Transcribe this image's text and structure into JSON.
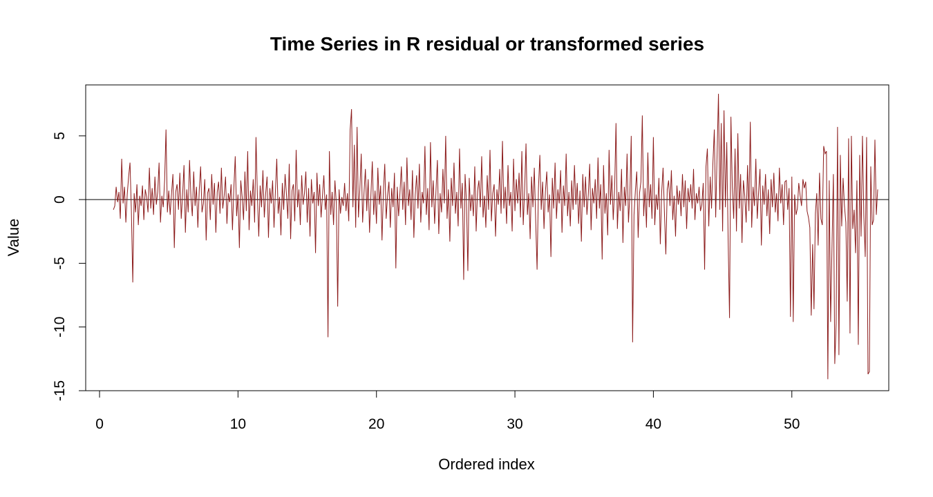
{
  "chart_data": {
    "type": "line",
    "title": "Time Series in R residual or transformed series",
    "xlabel": "Ordered index",
    "ylabel": "Value",
    "xlim": [
      -1,
      57
    ],
    "ylim": [
      -15,
      9
    ],
    "x_ticks": [
      0,
      10,
      20,
      30,
      40,
      50
    ],
    "y_ticks": [
      -15,
      -10,
      -5,
      0,
      5
    ],
    "x_tick_labels": [
      "0",
      "10",
      "20",
      "30",
      "40",
      "50"
    ],
    "y_tick_labels": [
      "-15",
      "-10",
      "-5",
      "0",
      "5"
    ],
    "reference_line": 0,
    "grid": false,
    "series": [
      {
        "color": "#8B1A1A",
        "x_start": 1,
        "x_step": 0.1,
        "values": [
          -0.8,
          -0.5,
          1.0,
          -0.2,
          0.6,
          -1.5,
          3.2,
          -0.3,
          1.0,
          -1.8,
          0.4,
          1.8,
          2.9,
          -0.9,
          -6.5,
          0.5,
          -1.0,
          1.2,
          -2.0,
          0.3,
          -0.5,
          1.1,
          -1.6,
          0.8,
          0.2,
          -1.0,
          2.5,
          -0.7,
          0.9,
          -1.2,
          1.8,
          -0.4,
          0.6,
          2.9,
          -1.8,
          0.3,
          -0.6,
          1.5,
          5.5,
          -1.0,
          0.7,
          -1.2,
          0.5,
          2.0,
          -3.8,
          0.6,
          1.2,
          -0.8,
          2.1,
          -1.5,
          0.4,
          2.7,
          -2.6,
          0.8,
          -1.0,
          3.1,
          0.2,
          -1.3,
          2.2,
          -0.5,
          1.0,
          -2.2,
          0.7,
          2.6,
          -1.0,
          -0.3,
          1.6,
          -3.2,
          0.5,
          0.9,
          -1.6,
          2.0,
          -0.4,
          1.3,
          -2.6,
          0.6,
          1.4,
          -1.1,
          2.5,
          -0.7,
          0.3,
          1.8,
          -1.9,
          0.5,
          -0.2,
          1.2,
          -2.4,
          0.9,
          3.4,
          -1.3,
          0.4,
          -3.8,
          1.5,
          0.2,
          -1.6,
          2.2,
          -0.9,
          3.8,
          -2.4,
          0.7,
          -0.5,
          1.6,
          -1.8,
          4.9,
          0.3,
          -2.9,
          1.1,
          -0.6,
          2.3,
          -1.4,
          0.5,
          1.8,
          -3.0,
          0.9,
          -0.3,
          1.5,
          -2.2,
          0.6,
          3.2,
          -1.1,
          0.2,
          -2.8,
          1.3,
          -0.8,
          2.0,
          0.4,
          -1.5,
          2.8,
          -3.1,
          0.7,
          1.2,
          -1.7,
          3.9,
          -0.6,
          0.8,
          -2.0,
          1.9,
          -0.4,
          0.5,
          2.2,
          -1.8,
          0.9,
          -2.9,
          1.6,
          -0.3,
          0.6,
          -4.2,
          2.1,
          -0.5,
          1.2,
          -1.4,
          0.3,
          1.9,
          -0.8,
          0.4,
          -10.8,
          3.8,
          -1.2,
          0.6,
          -2.0,
          1.5,
          -0.3,
          -8.4,
          0.8,
          -1.1,
          0.2,
          -0.5,
          1.3,
          -0.9,
          0.5,
          -1.7,
          5.5,
          7.1,
          -0.6,
          4.3,
          -2.2,
          5.7,
          -1.4,
          0.8,
          3.6,
          -1.8,
          0.5,
          2.4,
          -0.9,
          1.6,
          -2.6,
          0.4,
          3.0,
          -1.2,
          0.7,
          -1.9,
          2.5,
          -0.4,
          1.1,
          -3.2,
          0.6,
          2.8,
          -1.5,
          0.3,
          1.4,
          -2.2,
          0.9,
          -0.6,
          2.1,
          -5.4,
          1.0,
          -1.3,
          0.6,
          2.6,
          -0.8,
          1.4,
          -2.0,
          3.3,
          -0.5,
          0.8,
          -1.6,
          2.3,
          -3.0,
          0.4,
          1.9,
          -0.7,
          2.8,
          -1.8,
          0.6,
          -0.3,
          4.2,
          -1.2,
          0.9,
          -2.4,
          4.5,
          -0.6,
          1.5,
          -1.9,
          0.7,
          3.1,
          -2.7,
          0.5,
          -1.0,
          2.4,
          -0.3,
          5.0,
          -1.5,
          0.8,
          -3.3,
          1.7,
          -0.5,
          2.9,
          -1.1,
          0.6,
          -2.1,
          4.0,
          -0.7,
          1.3,
          -6.3,
          2.0,
          -0.2,
          -5.6,
          1.7,
          -0.9,
          0.4,
          -1.3,
          2.6,
          -2.5,
          0.7,
          1.5,
          -0.6,
          3.4,
          -1.4,
          0.3,
          -2.2,
          1.9,
          -0.8,
          3.9,
          -1.7,
          0.5,
          1.2,
          -2.9,
          0.8,
          -0.4,
          2.4,
          -1.1,
          4.6,
          -0.7,
          1.0,
          -1.9,
          2.7,
          -0.5,
          0.6,
          -2.5,
          3.2,
          -0.9,
          1.6,
          -0.3,
          2.1,
          -1.4,
          3.8,
          -2.0,
          0.7,
          4.4,
          -1.2,
          0.5,
          -3.1,
          1.8,
          -0.6,
          2.5,
          -1.7,
          -5.5,
          0.9,
          3.5,
          -0.8,
          1.4,
          -2.3,
          0.6,
          2.2,
          -1.0,
          0.4,
          -4.5,
          1.7,
          -0.7,
          2.9,
          -1.5,
          0.8,
          -0.3,
          2.3,
          -2.6,
          1.1,
          -0.5,
          3.6,
          -1.3,
          0.6,
          -2.1,
          1.5,
          -0.8,
          2.7,
          -0.4,
          1.3,
          -1.9,
          0.7,
          -3.3,
          2.0,
          -0.6,
          1.8,
          -1.2,
          0.4,
          2.8,
          -2.4,
          0.9,
          -0.3,
          1.6,
          -1.5,
          3.3,
          -0.7,
          1.2,
          -4.7,
          2.7,
          -1.1,
          0.5,
          -2.8,
          3.9,
          -0.4,
          1.9,
          -1.6,
          0.8,
          6.0,
          -2.3,
          0.6,
          -0.9,
          2.4,
          -3.4,
          1.0,
          -0.5,
          3.6,
          -1.8,
          0.4,
          5.0,
          -11.2,
          -1.2,
          0.7,
          2.2,
          -3.0,
          0.5,
          1.4,
          6.6,
          -1.3,
          0.9,
          -2.2,
          3.7,
          -0.6,
          1.2,
          -1.5,
          4.9,
          -2.0,
          0.4,
          -0.8,
          1.7,
          -3.5,
          0.6,
          2.5,
          -1.1,
          -4.3,
          0.8,
          1.5,
          -0.5,
          2.3,
          -1.6,
          0.3,
          -2.9,
          1.1,
          -0.4,
          0.7,
          -1.3,
          2.0,
          -0.6,
          1.5,
          -2.3,
          0.9,
          -0.2,
          1.2,
          -0.7,
          2.4,
          -1.6,
          0.5,
          -0.3,
          1.0,
          -0.9,
          -0.4,
          1.3,
          -5.5,
          2.6,
          4.0,
          -2.1,
          1.8,
          -0.7,
          2.9,
          5.5,
          -1.4,
          3.5,
          8.3,
          -0.8,
          6.0,
          -2.5,
          7.0,
          -0.6,
          4.5,
          -3.2,
          -9.3,
          6.5,
          1.0,
          -1.5,
          4.0,
          -2.5,
          5.2,
          -0.7,
          2.0,
          -3.4,
          1.5,
          0.3,
          -1.8,
          2.7,
          -0.9,
          6.1,
          -2.2,
          1.0,
          -0.5,
          3.2,
          -1.5,
          0.6,
          2.4,
          -3.6,
          1.1,
          -0.4,
          2.0,
          -1.3,
          0.8,
          -2.7,
          1.6,
          -0.6,
          2.1,
          -1.0,
          0.5,
          -1.7,
          2.5,
          -0.3,
          1.2,
          -2.0,
          1.4,
          1.5,
          -0.8,
          0.9,
          -9.2,
          1.8,
          -9.6,
          0.4,
          -1.2,
          -0.7,
          1.3,
          0.3,
          -0.5,
          1.6,
          0.9,
          1.4,
          -0.9,
          -1.4,
          -2.2,
          -9.1,
          -3.5,
          -8.6,
          -1.1,
          0.5,
          -3.6,
          2.1,
          -1.5,
          -2.0,
          4.2,
          3.6,
          3.8,
          -14.1,
          1.5,
          -9.6,
          -3.8,
          2.0,
          -12.9,
          -9.7,
          5.7,
          -12.2,
          3.5,
          -2.1,
          1.7,
          -0.5,
          -1.8,
          -8.0,
          4.8,
          -10.5,
          5.0,
          -2.3,
          -0.8,
          -4.2,
          1.5,
          -11.4,
          3.5,
          -2.9,
          5.0,
          -1.3,
          -4.5,
          4.9,
          -13.7,
          -13.5,
          2.6,
          -2.0,
          -1.6,
          4.7,
          -1.2,
          0.8
        ]
      }
    ]
  }
}
